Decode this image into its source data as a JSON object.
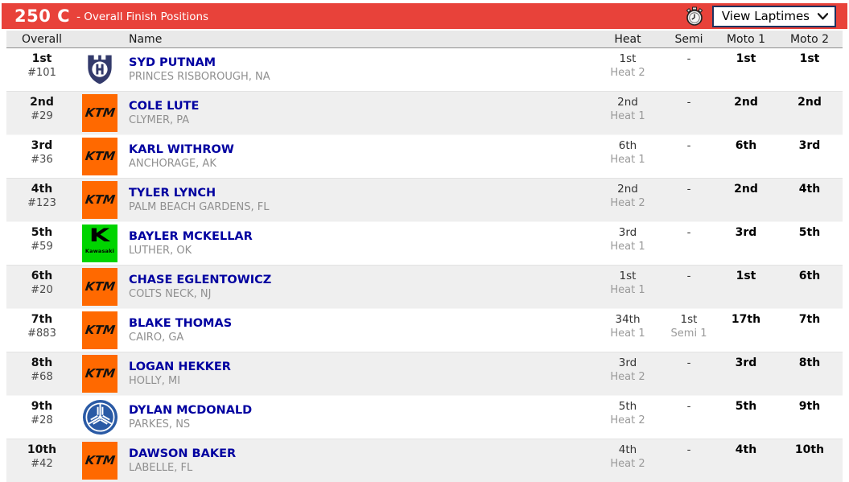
{
  "header": {
    "class_label": "250 C",
    "subtitle": "- Overall Finish Positions",
    "bar_color": "#e8423a",
    "stopwatch_icon": "stopwatch-icon",
    "laptimes_dropdown_label": "View Laptimes"
  },
  "columns": {
    "overall": "Overall",
    "name": "Name",
    "heat": "Heat",
    "semi": "Semi",
    "moto1": "Moto 1",
    "moto2": "Moto 2"
  },
  "colors": {
    "title_bar_red": "#e8423a",
    "row_alt_gray": "#efefef",
    "header_gray": "#e9e9e9",
    "rider_name_blue": "#0000a0",
    "ktm_orange": "#ff6900",
    "kawasaki_green": "#00d400",
    "husqvarna_navy": "#333a6b",
    "yamaha_blue": "#2a5aa5"
  },
  "rows": [
    {
      "pos": "1st",
      "num": "#101",
      "brand": "husqvarna",
      "name": "SYD PUTNAM",
      "hometown": "PRINCES RISBOROUGH, NA",
      "heat_pos": "1st",
      "heat_label": "Heat 2",
      "semi_pos": "-",
      "semi_label": "",
      "moto1": "1st",
      "moto2": "1st"
    },
    {
      "pos": "2nd",
      "num": "#29",
      "brand": "ktm",
      "name": "COLE LUTE",
      "hometown": "CLYMER, PA",
      "heat_pos": "2nd",
      "heat_label": "Heat 1",
      "semi_pos": "-",
      "semi_label": "",
      "moto1": "2nd",
      "moto2": "2nd"
    },
    {
      "pos": "3rd",
      "num": "#36",
      "brand": "ktm",
      "name": "KARL WITHROW",
      "hometown": "ANCHORAGE, AK",
      "heat_pos": "6th",
      "heat_label": "Heat 1",
      "semi_pos": "-",
      "semi_label": "",
      "moto1": "6th",
      "moto2": "3rd"
    },
    {
      "pos": "4th",
      "num": "#123",
      "brand": "ktm",
      "name": "TYLER LYNCH",
      "hometown": "PALM BEACH GARDENS, FL",
      "heat_pos": "2nd",
      "heat_label": "Heat 2",
      "semi_pos": "-",
      "semi_label": "",
      "moto1": "2nd",
      "moto2": "4th"
    },
    {
      "pos": "5th",
      "num": "#59",
      "brand": "kawasaki",
      "name": "BAYLER MCKELLAR",
      "hometown": "LUTHER, OK",
      "heat_pos": "3rd",
      "heat_label": "Heat 1",
      "semi_pos": "-",
      "semi_label": "",
      "moto1": "3rd",
      "moto2": "5th"
    },
    {
      "pos": "6th",
      "num": "#20",
      "brand": "ktm",
      "name": "CHASE EGLENTOWICZ",
      "hometown": "COLTS NECK, NJ",
      "heat_pos": "1st",
      "heat_label": "Heat 1",
      "semi_pos": "-",
      "semi_label": "",
      "moto1": "1st",
      "moto2": "6th"
    },
    {
      "pos": "7th",
      "num": "#883",
      "brand": "ktm",
      "name": "BLAKE THOMAS",
      "hometown": "CAIRO, GA",
      "heat_pos": "34th",
      "heat_label": "Heat 1",
      "semi_pos": "1st",
      "semi_label": "Semi 1",
      "moto1": "17th",
      "moto2": "7th"
    },
    {
      "pos": "8th",
      "num": "#68",
      "brand": "ktm",
      "name": "LOGAN HEKKER",
      "hometown": "HOLLY, MI",
      "heat_pos": "3rd",
      "heat_label": "Heat 2",
      "semi_pos": "-",
      "semi_label": "",
      "moto1": "3rd",
      "moto2": "8th"
    },
    {
      "pos": "9th",
      "num": "#28",
      "brand": "yamaha",
      "name": "DYLAN MCDONALD",
      "hometown": "PARKES, NS",
      "heat_pos": "5th",
      "heat_label": "Heat 2",
      "semi_pos": "-",
      "semi_label": "",
      "moto1": "5th",
      "moto2": "9th"
    },
    {
      "pos": "10th",
      "num": "#42",
      "brand": "ktm",
      "name": "DAWSON BAKER",
      "hometown": "LABELLE, FL",
      "heat_pos": "4th",
      "heat_label": "Heat 2",
      "semi_pos": "-",
      "semi_label": "",
      "moto1": "4th",
      "moto2": "10th"
    }
  ]
}
